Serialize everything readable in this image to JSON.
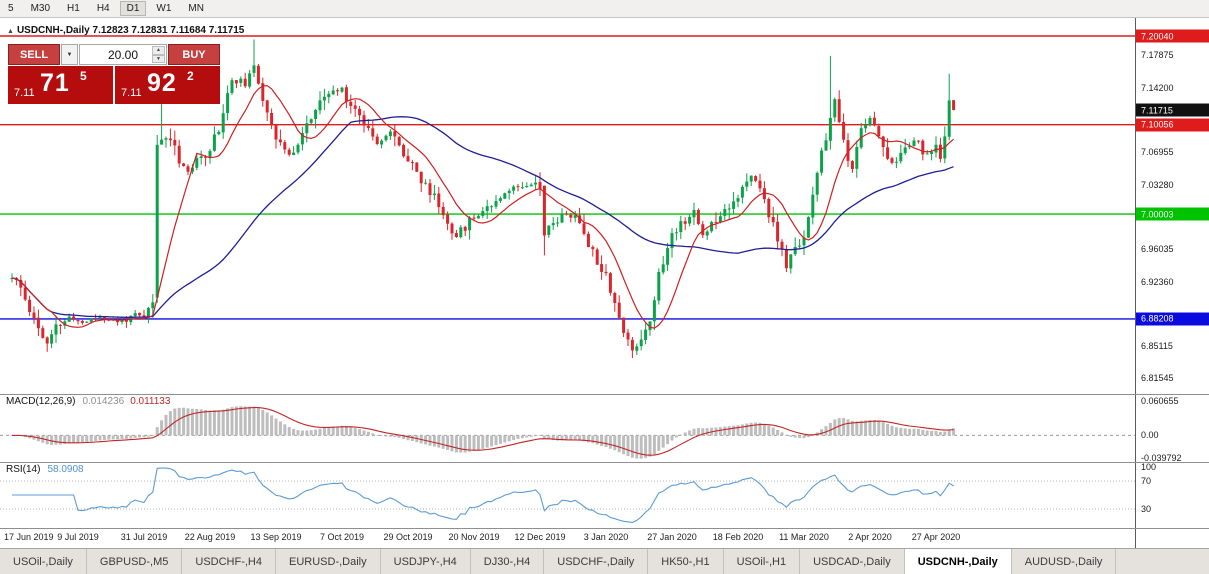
{
  "toolbar": {
    "timeframes": [
      {
        "label": "5"
      },
      {
        "label": "M30"
      },
      {
        "label": "H1"
      },
      {
        "label": "H4"
      },
      {
        "label": "D1",
        "active": true
      },
      {
        "label": "W1"
      },
      {
        "label": "MN"
      }
    ]
  },
  "chart": {
    "info_line": "USDCNH-,Daily 7.12823 7.12831 7.11684 7.11715",
    "trade_widget": {
      "sell_label": "SELL",
      "buy_label": "BUY",
      "volume": "20.00",
      "sell_quote": {
        "prefix": "7.11",
        "big": "71",
        "pip": "5"
      },
      "buy_quote": {
        "prefix": "7.11",
        "big": "92",
        "pip": "2"
      }
    },
    "colors": {
      "up": "#0ca24a",
      "down": "#d8262c",
      "ma_fast": "#cf1f1f",
      "ma_slow": "#1e1e96",
      "macd_hist": "#bdbdbd",
      "macd_signal": "#c42525",
      "rsi_line": "#5b9bd5"
    }
  },
  "macd": {
    "name": "MACD(12,26,9)",
    "value_main": "0.014236",
    "value_signal": "0.011133",
    "fast": 12,
    "slow": 26,
    "signal": 9,
    "scale": [
      {
        "v": 0.060655,
        "label": "0.060655"
      },
      {
        "v": 0,
        "label": "0.00"
      },
      {
        "v": -0.039792,
        "label": "-0.039792"
      }
    ]
  },
  "rsi": {
    "name": "RSI(14)",
    "value": "58.0908",
    "period": 14,
    "levels": [
      {
        "v": 100,
        "label": "100"
      },
      {
        "v": 70,
        "label": "70"
      },
      {
        "v": 30,
        "label": "30"
      }
    ],
    "line_levels": [
      70,
      30
    ]
  },
  "tabs": [
    {
      "label": "USOil-,Daily"
    },
    {
      "label": "GBPUSD-,M5"
    },
    {
      "label": "USDCHF-,H4"
    },
    {
      "label": "EURUSD-,Daily"
    },
    {
      "label": "USDJPY-,H4"
    },
    {
      "label": "DJ30-,H4"
    },
    {
      "label": "USDCHF-,Daily"
    },
    {
      "label": "HK50-,H1"
    },
    {
      "label": "USOil-,H1"
    },
    {
      "label": "USDCAD-,Daily"
    },
    {
      "label": "USDCNH-,Daily",
      "active": true
    },
    {
      "label": "AUDUSD-,Daily"
    }
  ],
  "chart_data": {
    "type": "candlestick",
    "symbol": "USDCNH-",
    "timeframe": "Daily",
    "current_bar": {
      "open": 7.12823,
      "high": 7.12831,
      "low": 7.11684,
      "close": 7.11715
    },
    "bid": "7.11715",
    "ask": "7.11922",
    "price_range": {
      "top": 7.2207,
      "bottom": 6.7975
    },
    "y_ticks": [
      "7.17875",
      "7.14200",
      "7.06955",
      "7.03280",
      "6.96035",
      "6.92360",
      "6.85115",
      "6.81545"
    ],
    "levels": [
      {
        "price": 7.2004,
        "label": "7.20040",
        "color": "#e01b1b",
        "line": true
      },
      {
        "price": 7.11715,
        "label": "7.11715",
        "color": "#111111",
        "line": false
      },
      {
        "price": 7.10056,
        "label": "7.10056",
        "color": "#e01b1b",
        "line": true
      },
      {
        "price": 7.00003,
        "label": "7.00003",
        "color": "#00c300",
        "line": true
      },
      {
        "price": 6.88208,
        "label": "6.88208",
        "color": "#0b0be0",
        "line": true
      }
    ],
    "x_labels": [
      "17 Jun 2019",
      "9 Jul 2019",
      "31 Jul 2019",
      "22 Aug 2019",
      "13 Sep 2019",
      "7 Oct 2019",
      "29 Oct 2019",
      "20 Nov 2019",
      "12 Dec 2019",
      "3 Jan 2020",
      "27 Jan 2020",
      "18 Feb 2020",
      "11 Mar 2020",
      "2 Apr 2020",
      "27 Apr 2020"
    ],
    "bars_per_label": 15,
    "num_candles": 215,
    "ma_fast_period": 10,
    "ma_slow_period": 45,
    "price_keypoints": [
      [
        0,
        6.928
      ],
      [
        2,
        6.916
      ],
      [
        5,
        6.882
      ],
      [
        8,
        6.853
      ],
      [
        10,
        6.872
      ],
      [
        13,
        6.883
      ],
      [
        16,
        6.878
      ],
      [
        20,
        6.885
      ],
      [
        24,
        6.878
      ],
      [
        28,
        6.886
      ],
      [
        30,
        6.882
      ],
      [
        32,
        6.902
      ],
      [
        34,
        7.083
      ],
      [
        36,
        7.088
      ],
      [
        38,
        7.062
      ],
      [
        40,
        7.048
      ],
      [
        43,
        7.063
      ],
      [
        45,
        7.075
      ],
      [
        47,
        7.097
      ],
      [
        50,
        7.152
      ],
      [
        53,
        7.148
      ],
      [
        55,
        7.163
      ],
      [
        57,
        7.132
      ],
      [
        60,
        7.088
      ],
      [
        63,
        7.064
      ],
      [
        66,
        7.092
      ],
      [
        69,
        7.117
      ],
      [
        72,
        7.136
      ],
      [
        75,
        7.14
      ],
      [
        77,
        7.124
      ],
      [
        80,
        7.104
      ],
      [
        83,
        7.082
      ],
      [
        86,
        7.092
      ],
      [
        89,
        7.068
      ],
      [
        91,
        7.06
      ],
      [
        93,
        7.036
      ],
      [
        96,
        7.02
      ],
      [
        99,
        6.99
      ],
      [
        101,
        6.976
      ],
      [
        104,
        6.992
      ],
      [
        106,
        7.002
      ],
      [
        109,
        7.012
      ],
      [
        112,
        7.026
      ],
      [
        115,
        7.031
      ],
      [
        118,
        7.036
      ],
      [
        120,
        7.031
      ],
      [
        121,
        6.976
      ],
      [
        123,
        6.991
      ],
      [
        126,
        7.001
      ],
      [
        129,
        6.991
      ],
      [
        132,
        6.957
      ],
      [
        135,
        6.932
      ],
      [
        137,
        6.901
      ],
      [
        139,
        6.866
      ],
      [
        141,
        6.847
      ],
      [
        143,
        6.861
      ],
      [
        145,
        6.882
      ],
      [
        147,
        6.931
      ],
      [
        150,
        6.976
      ],
      [
        152,
        6.991
      ],
      [
        155,
        7.001
      ],
      [
        157,
        6.976
      ],
      [
        160,
        6.996
      ],
      [
        163,
        7.011
      ],
      [
        165,
        7.021
      ],
      [
        168,
        7.041
      ],
      [
        170,
        7.031
      ],
      [
        172,
        7.001
      ],
      [
        174,
        6.971
      ],
      [
        176,
        6.941
      ],
      [
        178,
        6.961
      ],
      [
        180,
        6.976
      ],
      [
        182,
        7.021
      ],
      [
        184,
        7.066
      ],
      [
        186,
        7.108
      ],
      [
        187,
        7.126
      ],
      [
        189,
        7.081
      ],
      [
        191,
        7.046
      ],
      [
        193,
        7.096
      ],
      [
        195,
        7.111
      ],
      [
        197,
        7.086
      ],
      [
        199,
        7.066
      ],
      [
        201,
        7.056
      ],
      [
        203,
        7.076
      ],
      [
        205,
        7.086
      ],
      [
        207,
        7.071
      ],
      [
        209,
        7.066
      ],
      [
        210,
        7.081
      ],
      [
        211,
        7.062
      ],
      [
        212,
        7.087
      ],
      [
        213,
        7.128
      ],
      [
        214,
        7.11715
      ]
    ],
    "bar_overrides": {
      "8": {
        "l": 6.845
      },
      "33": {
        "o": 6.906,
        "c": 7.078,
        "h": 7.089,
        "l": 6.9
      },
      "34": {
        "h": 7.1397
      },
      "55": {
        "h": 7.1965
      },
      "121": {
        "o": 7.032,
        "c": 6.976,
        "l": 6.9535
      },
      "141": {
        "l": 6.838
      },
      "186": {
        "h": 7.178
      },
      "213": {
        "o": 7.087,
        "c": 7.128,
        "h": 7.158,
        "l": 7.083
      },
      "214": {
        "o": 7.12823,
        "h": 7.12831,
        "l": 7.11684,
        "c": 7.11715
      }
    }
  }
}
